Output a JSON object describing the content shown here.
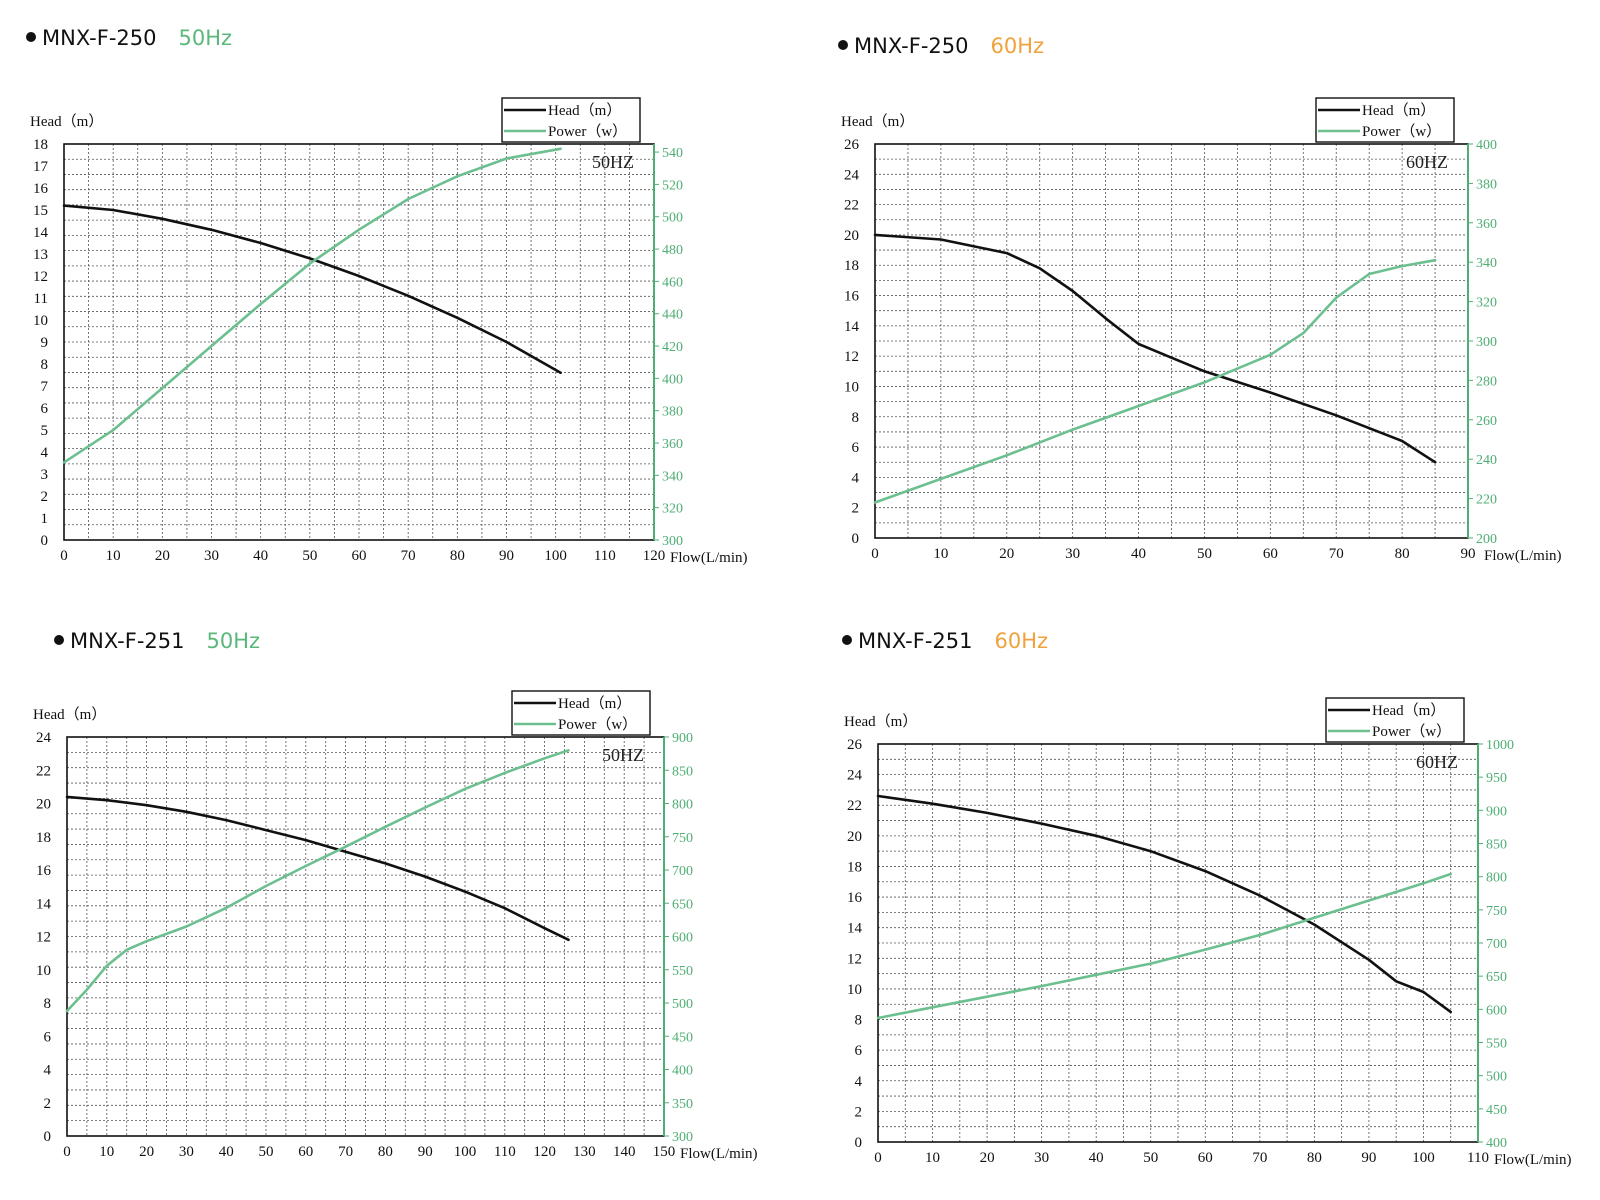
{
  "colors": {
    "head": "#111111",
    "power": "#6cbf8e",
    "freq50": "#5ab87b",
    "freq60": "#f0a23c",
    "power_axis": "#4fae74"
  },
  "chart_data": [
    {
      "type": "line",
      "title": "MNX-F-250",
      "frequency": "50Hz",
      "freq_color": "freq50",
      "inner_label": "50HZ",
      "y_label": "Head（m）",
      "x_label": "Flow(L/min)",
      "legend": [
        "Head（m）",
        "Power（w）"
      ],
      "legend_position": "top-right",
      "grid": true,
      "xlim": [
        0,
        120
      ],
      "x_ticks": [
        0,
        10,
        20,
        30,
        40,
        50,
        60,
        70,
        80,
        90,
        100,
        110,
        120
      ],
      "ylim": [
        0,
        18
      ],
      "y_ticks": [
        0,
        1,
        2,
        3,
        4,
        5,
        6,
        7,
        8,
        9,
        10,
        11,
        12,
        13,
        14,
        15,
        16,
        17,
        18
      ],
      "y2lim": [
        300,
        545
      ],
      "y2_ticks": [
        300,
        320,
        340,
        360,
        380,
        400,
        420,
        440,
        460,
        480,
        500,
        520,
        540
      ],
      "series": [
        {
          "name": "Head（m）",
          "axis": "left",
          "x": [
            0,
            10,
            20,
            30,
            40,
            50,
            60,
            70,
            80,
            90,
            101
          ],
          "y": [
            15.2,
            15.0,
            14.6,
            14.1,
            13.5,
            12.8,
            12.0,
            11.1,
            10.1,
            9.0,
            7.6
          ]
        },
        {
          "name": "Power（w）",
          "axis": "right",
          "x": [
            0,
            10,
            20,
            30,
            40,
            50,
            60,
            70,
            80,
            90,
            101
          ],
          "y": [
            348,
            368,
            394,
            420,
            446,
            471,
            492,
            511,
            525,
            536,
            542
          ]
        }
      ]
    },
    {
      "type": "line",
      "title": "MNX-F-250",
      "frequency": "60Hz",
      "freq_color": "freq60",
      "inner_label": "60HZ",
      "y_label": "Head（m）",
      "x_label": "Flow(L/min)",
      "legend": [
        "Head（m）",
        "Power（w）"
      ],
      "legend_position": "top-right",
      "grid": true,
      "xlim": [
        0,
        90
      ],
      "x_ticks": [
        0,
        10,
        20,
        30,
        40,
        50,
        60,
        70,
        80,
        90
      ],
      "ylim": [
        0,
        26
      ],
      "y_ticks": [
        0,
        2,
        4,
        6,
        8,
        10,
        12,
        14,
        16,
        18,
        20,
        22,
        24,
        26
      ],
      "y2lim": [
        200,
        400
      ],
      "y2_ticks": [
        200,
        220,
        240,
        260,
        280,
        300,
        320,
        340,
        360,
        380,
        400
      ],
      "series": [
        {
          "name": "Head（m）",
          "axis": "left",
          "x": [
            0,
            10,
            20,
            25,
            30,
            35,
            40,
            45,
            50,
            60,
            70,
            80,
            85
          ],
          "y": [
            20,
            19.7,
            18.8,
            17.8,
            16.3,
            14.5,
            12.8,
            11.9,
            11.0,
            9.6,
            8.1,
            6.4,
            5.0
          ]
        },
        {
          "name": "Power（w）",
          "axis": "right",
          "x": [
            0,
            10,
            20,
            30,
            40,
            50,
            60,
            65,
            70,
            75,
            80,
            85
          ],
          "y": [
            218,
            230,
            242,
            255,
            267,
            279,
            293,
            304,
            322,
            334,
            338,
            341
          ]
        }
      ]
    },
    {
      "type": "line",
      "title": "MNX-F-251",
      "frequency": "50Hz",
      "freq_color": "freq50",
      "inner_label": "50HZ",
      "y_label": "Head（m）",
      "x_label": "Flow(L/min)",
      "legend": [
        "Head（m）",
        "Power（w）"
      ],
      "legend_position": "top-right",
      "grid": true,
      "xlim": [
        0,
        150
      ],
      "x_ticks": [
        0,
        10,
        20,
        30,
        40,
        50,
        60,
        70,
        80,
        90,
        100,
        110,
        120,
        130,
        140,
        150
      ],
      "ylim": [
        0,
        24
      ],
      "y_ticks": [
        0,
        2,
        4,
        6,
        8,
        10,
        12,
        14,
        16,
        18,
        20,
        22,
        24
      ],
      "y2lim": [
        300,
        900
      ],
      "y2_ticks": [
        300,
        350,
        400,
        450,
        500,
        550,
        600,
        650,
        700,
        750,
        800,
        850,
        900
      ],
      "series": [
        {
          "name": "Head（m）",
          "axis": "left",
          "x": [
            0,
            10,
            20,
            30,
            40,
            50,
            60,
            70,
            80,
            90,
            100,
            110,
            120,
            126
          ],
          "y": [
            20.4,
            20.2,
            19.9,
            19.5,
            19.0,
            18.4,
            17.8,
            17.1,
            16.4,
            15.6,
            14.7,
            13.7,
            12.5,
            11.8
          ]
        },
        {
          "name": "Power（w）",
          "axis": "right",
          "x": [
            0,
            5,
            10,
            15,
            20,
            30,
            40,
            50,
            60,
            70,
            80,
            90,
            100,
            110,
            120,
            126
          ],
          "y": [
            488,
            520,
            556,
            580,
            593,
            615,
            643,
            676,
            706,
            735,
            765,
            794,
            822,
            846,
            868,
            880
          ]
        }
      ]
    },
    {
      "type": "line",
      "title": "MNX-F-251",
      "frequency": "60Hz",
      "freq_color": "freq60",
      "inner_label": "60HZ",
      "y_label": "Head（m）",
      "x_label": "Flow(L/min)",
      "legend": [
        "Head（m）",
        "Power（w）"
      ],
      "legend_position": "top-right",
      "grid": true,
      "xlim": [
        0,
        110
      ],
      "x_ticks": [
        0,
        10,
        20,
        30,
        40,
        50,
        60,
        70,
        80,
        90,
        100,
        110
      ],
      "ylim": [
        0,
        26
      ],
      "y_ticks": [
        0,
        2,
        4,
        6,
        8,
        10,
        12,
        14,
        16,
        18,
        20,
        22,
        24,
        26
      ],
      "y2lim": [
        400,
        1000
      ],
      "y2_ticks": [
        400,
        450,
        500,
        550,
        600,
        650,
        700,
        750,
        800,
        850,
        900,
        950,
        1000
      ],
      "series": [
        {
          "name": "Head（m）",
          "axis": "left",
          "x": [
            0,
            10,
            20,
            30,
            40,
            50,
            60,
            70,
            80,
            90,
            95,
            100,
            105
          ],
          "y": [
            22.6,
            22.1,
            21.5,
            20.8,
            20.0,
            19.0,
            17.7,
            16.1,
            14.2,
            11.9,
            10.5,
            9.8,
            8.5
          ]
        },
        {
          "name": "Power（w）",
          "axis": "right",
          "x": [
            0,
            10,
            20,
            30,
            40,
            50,
            60,
            70,
            80,
            90,
            100,
            105
          ],
          "y": [
            587,
            603,
            619,
            635,
            652,
            669,
            690,
            712,
            738,
            764,
            790,
            804
          ]
        }
      ]
    }
  ]
}
